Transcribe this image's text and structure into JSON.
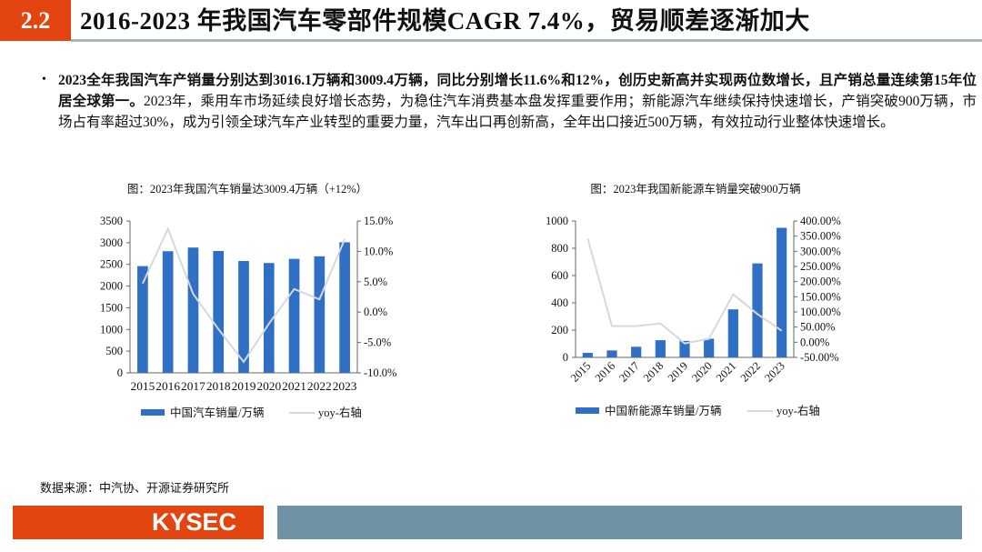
{
  "header": {
    "section_number": "2.2",
    "title": "2016-2023 年我国汽车零部件规模CAGR 7.4%，贸易顺差逐渐加大"
  },
  "body": {
    "bold_text": "2023全年我国汽车产销量分别达到3016.1万辆和3009.4万辆，同比分别增长11.6%和12%，创历史新高并实现两位数增长，且产销总量连续第15年位居全球第一。",
    "text": "2023年，乘用车市场延续良好增长态势，为稳住汽车消费基本盘发挥重要作用；新能源汽车继续保持快速增长，产销突破900万辆，市场占有率超过30%，成为引领全球汽车产业转型的重要力量，汽车出口再创新高，全年出口接近500万辆，有效拉动行业整体快速增长。"
  },
  "chart_data": [
    {
      "type": "bar",
      "title": "图：2023年我国汽车销量达3009.4万辆（+12%）",
      "categories": [
        "2015",
        "2016",
        "2017",
        "2018",
        "2019",
        "2020",
        "2021",
        "2022",
        "2023"
      ],
      "series": [
        {
          "name": "中国汽车销量/万辆",
          "type": "bar",
          "axis": "left",
          "values": [
            2460,
            2803,
            2888,
            2808,
            2577,
            2531,
            2627,
            2686,
            3009
          ]
        },
        {
          "name": "yoy-右轴",
          "type": "line",
          "axis": "right",
          "values": [
            4.7,
            13.7,
            3.0,
            -2.8,
            -8.2,
            -1.9,
            3.8,
            2.1,
            12.0
          ]
        }
      ],
      "ylim": [
        0,
        3500
      ],
      "yticks": [
        "0",
        "500",
        "1000",
        "1500",
        "2000",
        "2500",
        "3000",
        "3500"
      ],
      "y2lim": [
        -10,
        15
      ],
      "y2ticks": [
        "-10.0%",
        "-5.0%",
        "0.0%",
        "5.0%",
        "10.0%",
        "15.0%"
      ],
      "legend": "bottom",
      "grid": false,
      "colors": {
        "bar": "#2f6fc4",
        "line": "#d6d9dc"
      }
    },
    {
      "type": "bar",
      "title": "图：2023年我国新能源车销量突破900万辆",
      "categories": [
        "2015",
        "2016",
        "2017",
        "2018",
        "2019",
        "2020",
        "2021",
        "2022",
        "2023"
      ],
      "series": [
        {
          "name": "中国新能源车销量/万辆",
          "type": "bar",
          "axis": "left",
          "values": [
            33,
            51,
            78,
            126,
            121,
            137,
            352,
            689,
            950
          ]
        },
        {
          "name": "yoy-右轴",
          "type": "line",
          "axis": "right",
          "values": [
            343,
            53,
            53,
            62,
            -4,
            11,
            158,
            93,
            38
          ]
        }
      ],
      "ylim": [
        0,
        1000
      ],
      "yticks": [
        "0",
        "200",
        "400",
        "600",
        "800",
        "1000"
      ],
      "y2lim": [
        -50,
        400
      ],
      "y2ticks": [
        "-50.00%",
        "0.00%",
        "50.00%",
        "100.00%",
        "150.00%",
        "200.00%",
        "250.00%",
        "300.00%",
        "350.00%",
        "400.00%"
      ],
      "legend": "bottom",
      "grid": false,
      "colors": {
        "bar": "#2f6fc4",
        "line": "#d6d9dc"
      }
    }
  ],
  "footer": {
    "source": "数据来源：中汽协、开源证券研究所",
    "logo": "KYSEC"
  }
}
